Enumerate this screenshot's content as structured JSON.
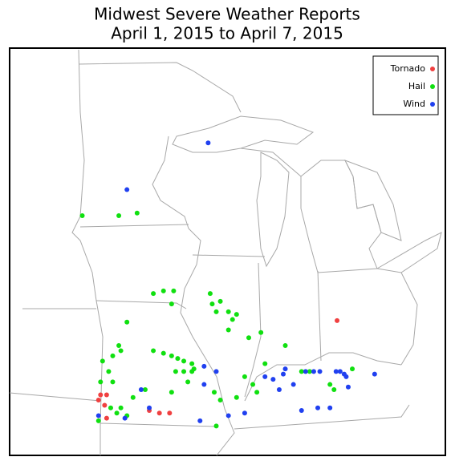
{
  "chart_data": {
    "type": "map",
    "title": [
      "Midwest Severe Weather Reports",
      "April 1, 2015 to April 7, 2015"
    ],
    "series": [
      {
        "name": "Tornado",
        "color": "#f04040",
        "lon": [
          -84.35,
          -96.0,
          -95.7,
          -95.8,
          -95.7,
          -93.6,
          -93.1,
          -92.6,
          -96.1
        ],
        "lat": [
          40.36,
          37.5,
          37.5,
          37.1,
          36.6,
          36.9,
          36.8,
          36.8,
          37.3
        ]
      },
      {
        "name": "Hail",
        "color": "#10e010",
        "lon": [
          -96.9,
          -95.1,
          -94.2,
          -93.4,
          -92.9,
          -92.4,
          -92.5,
          -90.6,
          -90.5,
          -90.1,
          -90.3,
          -89.7,
          -89.3,
          -89.5,
          -89.7,
          -88.7,
          -88.1,
          -94.7,
          -95.1,
          -95.0,
          -95.4,
          -95.9,
          -95.6,
          -96.0,
          -95.4,
          -93.4,
          -92.9,
          -92.5,
          -92.2,
          -91.9,
          -91.5,
          -91.4,
          -91.9,
          -91.7,
          -92.3,
          -91.5,
          -92.5,
          -93.8,
          -94.4,
          -95.5,
          -95.2,
          -95.0,
          -96.1,
          -94.7,
          -90.4,
          -90.1,
          -89.3,
          -88.9,
          -88.5,
          -88.3,
          -87.9,
          -86.9,
          -86.1,
          -85.7,
          -84.7,
          -84.5,
          -83.6,
          -90.3
        ],
        "lat": [
          44.4,
          44.4,
          44.5,
          41.4,
          41.5,
          41.5,
          41.0,
          41.4,
          41.0,
          41.1,
          40.7,
          40.7,
          40.6,
          40.4,
          40.0,
          39.7,
          39.9,
          40.3,
          39.4,
          39.2,
          39.0,
          38.8,
          38.4,
          38.0,
          38.0,
          39.2,
          39.1,
          39.0,
          38.9,
          38.8,
          38.7,
          38.5,
          38.4,
          38.0,
          38.4,
          38.4,
          37.6,
          37.7,
          37.4,
          37.0,
          36.8,
          37.0,
          36.5,
          36.7,
          37.6,
          37.3,
          37.4,
          38.2,
          37.9,
          37.6,
          38.7,
          39.4,
          38.4,
          38.4,
          37.9,
          37.7,
          38.5,
          36.3
        ]
      },
      {
        "name": "Wind",
        "color": "#2040f0",
        "lon": [
          -90.7,
          -94.7,
          -94.0,
          -93.6,
          -91.1,
          -90.9,
          -90.3,
          -89.7,
          -88.9,
          -87.9,
          -87.5,
          -87.0,
          -86.9,
          -86.5,
          -85.9,
          -85.2,
          -84.4,
          -84.0,
          -83.9,
          -84.2,
          -83.8,
          -82.5,
          -86.1,
          -85.3,
          -84.7,
          -85.5,
          -87.2,
          -94.8,
          -96.1,
          -90.9
        ],
        "lat": [
          47.2,
          45.4,
          37.7,
          37.0,
          36.5,
          38.6,
          38.4,
          36.7,
          36.8,
          38.2,
          38.1,
          38.3,
          38.5,
          37.9,
          38.4,
          38.4,
          38.4,
          38.3,
          38.2,
          38.4,
          37.8,
          38.3,
          36.9,
          37.0,
          37.0,
          38.4,
          37.7,
          36.6,
          36.7,
          37.9
        ]
      }
    ]
  }
}
